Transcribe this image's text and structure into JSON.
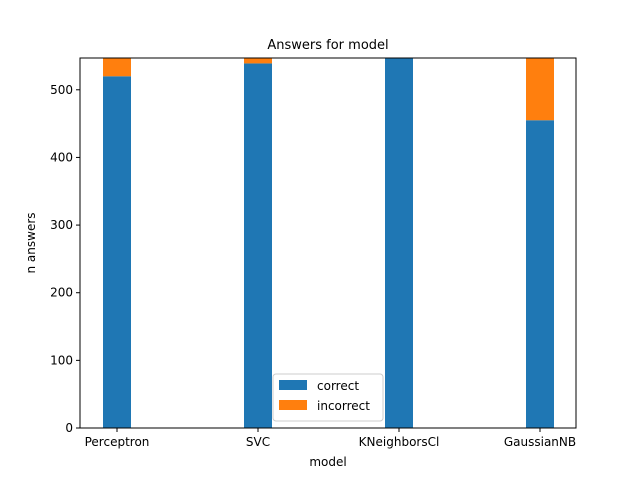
{
  "chart_data": {
    "type": "bar",
    "stacked": true,
    "title": "Answers for model",
    "xlabel": "model",
    "ylabel": "n answers",
    "categories": [
      "Perceptron",
      "SVC",
      "KNeighborsCl",
      "GaussianNB"
    ],
    "series": [
      {
        "name": "correct",
        "values": [
          520,
          539,
          547,
          455
        ],
        "color": "#1f77b4"
      },
      {
        "name": "incorrect",
        "values": [
          27,
          8,
          0,
          92
        ],
        "color": "#ff7f0e"
      }
    ],
    "ylim": [
      0,
      547
    ],
    "yticks": [
      0,
      100,
      200,
      300,
      400,
      500
    ],
    "grid": false,
    "legend_position": "bottom-center"
  }
}
